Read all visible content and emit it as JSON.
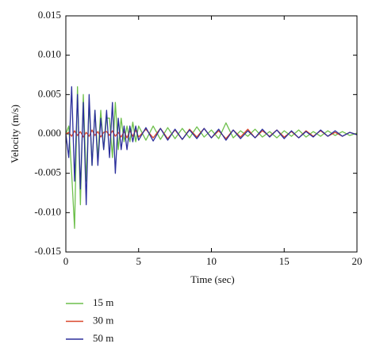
{
  "chart_data": {
    "type": "line",
    "xlabel": "Time (sec)",
    "ylabel": "Velocity (m/s)",
    "x": [
      0,
      0.2,
      0.4,
      0.6,
      0.8,
      1.0,
      1.2,
      1.4,
      1.6,
      1.8,
      2.0,
      2.2,
      2.4,
      2.6,
      2.8,
      3.0,
      3.2,
      3.4,
      3.6,
      3.8,
      4.0,
      4.2,
      4.4,
      4.6,
      4.8,
      5.0,
      5.5,
      6.0,
      6.5,
      7.0,
      7.5,
      8.0,
      8.5,
      9.0,
      9.5,
      10.0,
      10.5,
      11.0,
      11.5,
      12.0,
      12.5,
      13.0,
      13.5,
      14.0,
      14.5,
      15.0,
      15.5,
      16.0,
      16.5,
      17.0,
      17.5,
      18.0,
      18.5,
      19.0,
      19.5,
      20.0
    ],
    "series": [
      {
        "name": "15 m",
        "color": "#6dbf4b",
        "values": [
          0,
          0.001,
          -0.005,
          -0.012,
          0.006,
          -0.009,
          0.005,
          -0.006,
          0.004,
          -0.004,
          0.003,
          -0.003,
          0.003,
          -0.002,
          0.002,
          0.002,
          -0.003,
          0.004,
          -0.002,
          0.002,
          -0.001,
          0.001,
          -0.001,
          0.0015,
          -0.001,
          0.001,
          -0.0008,
          0.001,
          -0.0007,
          0.0008,
          -0.0006,
          0.0007,
          -0.0005,
          0.0009,
          -0.0004,
          0.0005,
          -0.0006,
          0.0014,
          -0.0005,
          0.0004,
          -0.0003,
          0.0006,
          -0.0004,
          0.0003,
          -0.0005,
          0.0004,
          -0.0003,
          0.0005,
          -0.0004,
          0.0003,
          -0.0003,
          0.0004,
          -0.0002,
          0.0003,
          -0.0002,
          0.0001
        ]
      },
      {
        "name": "30 m",
        "color": "#d9472b",
        "values": [
          0,
          0.0002,
          -0.0003,
          0.0004,
          -0.0002,
          0.0003,
          -0.0004,
          0.0002,
          -0.0003,
          0.0005,
          -0.0002,
          0.0003,
          -0.0004,
          0.0002,
          0.0003,
          -0.0002,
          0.0004,
          -0.0003,
          0.0002,
          -0.0004,
          0.0003,
          -0.0005,
          0.0004,
          -0.0003,
          0.0005,
          -0.0004,
          0.0006,
          -0.0005,
          0.0007,
          -0.0006,
          0.0005,
          -0.0007,
          0.0006,
          -0.0004,
          0.0007,
          -0.0005,
          0.0004,
          -0.0006,
          0.0005,
          -0.0004,
          0.0006,
          -0.0005,
          0.0004,
          -0.0003,
          0.0005,
          -0.0004,
          0.0003,
          -0.0005,
          0.0004,
          -0.0003,
          0.0004,
          -0.0003,
          0.0002,
          -0.0003,
          0.0002,
          -0.0001
        ]
      },
      {
        "name": "50 m",
        "color": "#2b2f9c",
        "values": [
          0,
          -0.003,
          0.006,
          -0.006,
          0.005,
          -0.007,
          0.004,
          -0.009,
          0.005,
          -0.004,
          0.003,
          -0.004,
          0.002,
          -0.002,
          0.003,
          -0.003,
          0.004,
          -0.005,
          0.002,
          -0.002,
          0.001,
          -0.002,
          0.001,
          -0.001,
          0.001,
          -0.0008,
          0.0008,
          -0.0009,
          0.0007,
          -0.0008,
          0.0006,
          -0.0007,
          0.0005,
          -0.0006,
          0.0007,
          -0.0005,
          0.0006,
          -0.0008,
          0.0005,
          -0.0006,
          0.0004,
          -0.0005,
          0.0006,
          -0.0004,
          0.0005,
          -0.0006,
          0.0004,
          -0.0005,
          0.0003,
          -0.0004,
          0.0005,
          -0.0003,
          0.0004,
          -0.0003,
          0.0002,
          -0.0001
        ]
      }
    ],
    "xlim": [
      0,
      20
    ],
    "xticks": [
      0,
      5,
      10,
      15,
      20
    ],
    "ylim": [
      -0.015,
      0.015
    ],
    "yticks": [
      -0.015,
      {
        "value": -0.01,
        "label": "-0.010"
      },
      -0.005,
      {
        "value": 0,
        "label": "0.000"
      },
      0.005,
      {
        "value": 0.01,
        "label": "0.010"
      },
      0.015
    ],
    "grid": false,
    "legend": "below"
  }
}
